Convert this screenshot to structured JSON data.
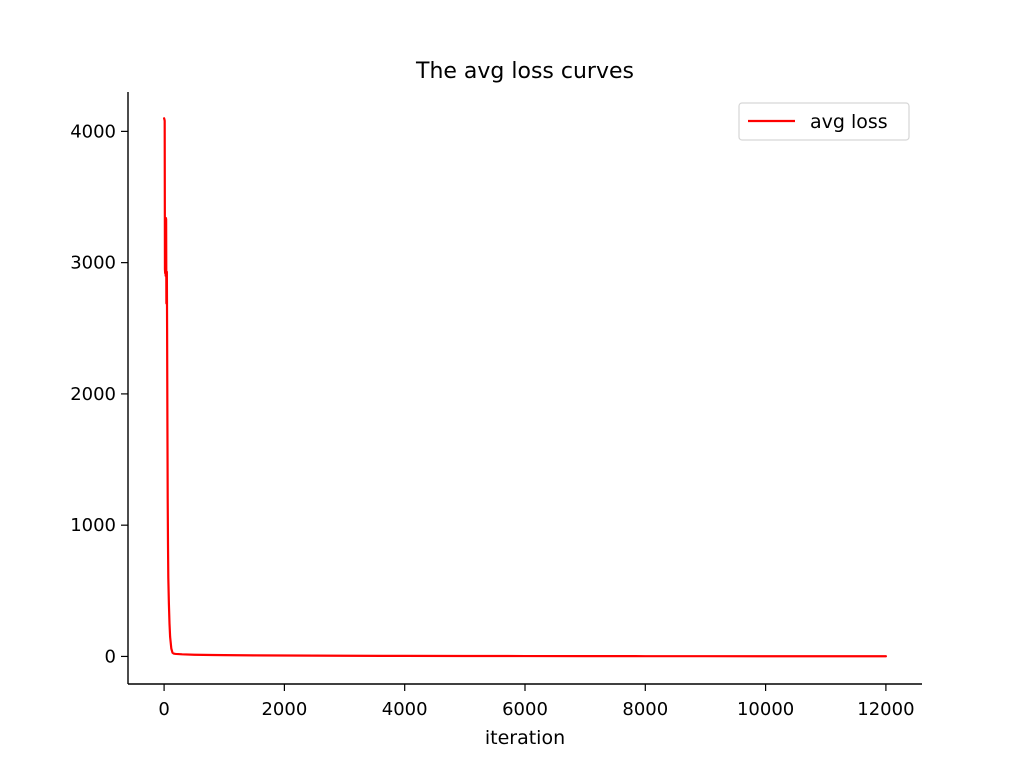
{
  "chart_data": {
    "type": "line",
    "title": "The avg loss curves",
    "xlabel": "iteration",
    "ylabel": "",
    "xlim": [
      -600,
      12600
    ],
    "ylim": [
      -210,
      4300
    ],
    "xticks": [
      0,
      2000,
      4000,
      6000,
      8000,
      10000,
      12000
    ],
    "yticks": [
      0,
      1000,
      2000,
      3000,
      4000
    ],
    "grid": false,
    "legend": {
      "position": "top-right",
      "entries": [
        "avg loss"
      ]
    },
    "series": [
      {
        "name": "avg loss",
        "color": "#ff0000",
        "x": [
          0,
          6,
          10,
          14,
          18,
          22,
          26,
          30,
          34,
          38,
          42,
          46,
          50,
          55,
          60,
          65,
          70,
          80,
          90,
          100,
          120,
          140,
          160,
          180,
          200,
          300,
          500,
          800,
          1000,
          1500,
          2000,
          2500,
          3000,
          4000,
          5000,
          6000,
          7000,
          8000,
          9000,
          10000,
          11000,
          12000
        ],
        "y": [
          4100,
          4090,
          4080,
          2950,
          2920,
          3150,
          2900,
          3340,
          3330,
          2690,
          2930,
          2930,
          2500,
          1800,
          1200,
          850,
          600,
          400,
          250,
          150,
          60,
          28,
          22,
          20,
          19,
          16,
          13,
          11,
          10,
          8,
          7,
          6,
          5,
          4,
          3.5,
          3,
          2.5,
          2,
          1.8,
          1.6,
          1.4,
          1.2
        ]
      }
    ]
  }
}
